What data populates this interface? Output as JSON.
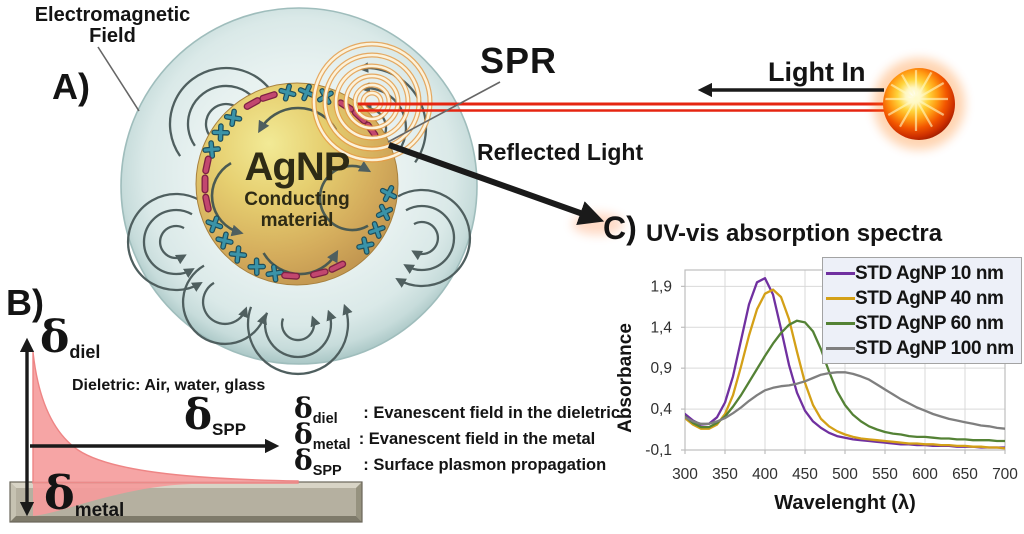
{
  "figure": {
    "panel_a": {
      "label": "A)",
      "em_field_label": "Electromagnetic Field",
      "particle_title": "AgNP",
      "particle_subtitle": "Conducting material",
      "spr_label": "SPR",
      "light_in_label": "Light In",
      "reflected_light_label": "Reflected Light",
      "plus_symbol": "+",
      "minus_symbol": "−"
    },
    "panel_b": {
      "label": "B)",
      "delta_symbol": "δ",
      "diel_subscript": "diel",
      "spp_subscript": "SPP",
      "metal_subscript": "metal",
      "dielectric_note": "Dieletric: Air, water, glass",
      "definitions": [
        {
          "sub": "diel",
          "text": " : Evanescent field in the dieletric"
        },
        {
          "sub": "metal",
          "text": ": Evanescent field in the metal"
        },
        {
          "sub": "SPP",
          "text": " : Surface plasmon propagation"
        }
      ]
    },
    "panel_c": {
      "label": "C)",
      "title": "UV-vis absorption spectra"
    }
  },
  "chart_data": {
    "type": "line",
    "title": "UV-vis absorption spectra",
    "xlabel": "Wavelenght (λ)",
    "ylabel": "Absorbance",
    "xlim": [
      300,
      700
    ],
    "ylim": [
      -0.1,
      2.1
    ],
    "grid": true,
    "legend_position": "top-right",
    "x_ticks": [
      "300",
      "350",
      "400",
      "450",
      "500",
      "550",
      "600",
      "650",
      "700"
    ],
    "x_tick_values": [
      300,
      350,
      400,
      450,
      500,
      550,
      600,
      650,
      700
    ],
    "y_ticks": [
      "1,9",
      "1,4",
      "0,9",
      "0,4",
      "-0,1"
    ],
    "y_tick_values": [
      1.9,
      1.4,
      0.9,
      0.4,
      -0.1
    ],
    "x": [
      300,
      310,
      320,
      330,
      340,
      350,
      360,
      370,
      380,
      390,
      400,
      410,
      420,
      430,
      440,
      450,
      460,
      470,
      480,
      490,
      500,
      510,
      520,
      530,
      540,
      550,
      560,
      570,
      580,
      590,
      600,
      610,
      620,
      630,
      640,
      650,
      660,
      670,
      680,
      690,
      700
    ],
    "series": [
      {
        "name": "STD AgNP 10 nm",
        "color": "#7030A0",
        "values": [
          0.34,
          0.26,
          0.21,
          0.22,
          0.3,
          0.48,
          0.8,
          1.24,
          1.68,
          1.95,
          2.0,
          1.8,
          1.38,
          0.94,
          0.6,
          0.38,
          0.25,
          0.17,
          0.11,
          0.07,
          0.05,
          0.03,
          0.02,
          0.01,
          0.0,
          -0.01,
          -0.02,
          -0.03,
          -0.03,
          -0.04,
          -0.04,
          -0.05,
          -0.05,
          -0.05,
          -0.06,
          -0.06,
          -0.06,
          -0.07,
          -0.07,
          -0.07,
          -0.07
        ]
      },
      {
        "name": "STD AgNP 40 nm",
        "color": "#D4A017",
        "values": [
          0.29,
          0.21,
          0.16,
          0.16,
          0.21,
          0.34,
          0.57,
          0.92,
          1.3,
          1.62,
          1.81,
          1.86,
          1.77,
          1.5,
          1.1,
          0.72,
          0.45,
          0.28,
          0.19,
          0.13,
          0.09,
          0.06,
          0.04,
          0.03,
          0.02,
          0.01,
          0.0,
          -0.01,
          -0.02,
          -0.02,
          -0.03,
          -0.03,
          -0.04,
          -0.04,
          -0.05,
          -0.05,
          -0.06,
          -0.06,
          -0.07,
          -0.07,
          -0.08
        ]
      },
      {
        "name": "STD AgNP 60 nm",
        "color": "#548235",
        "values": [
          0.31,
          0.23,
          0.18,
          0.18,
          0.23,
          0.31,
          0.43,
          0.57,
          0.73,
          0.89,
          1.05,
          1.2,
          1.33,
          1.43,
          1.48,
          1.46,
          1.35,
          1.13,
          0.86,
          0.62,
          0.45,
          0.33,
          0.25,
          0.19,
          0.15,
          0.12,
          0.1,
          0.09,
          0.07,
          0.06,
          0.06,
          0.05,
          0.04,
          0.04,
          0.03,
          0.03,
          0.02,
          0.02,
          0.02,
          0.01,
          0.01
        ]
      },
      {
        "name": "STD AgNP 100 nm",
        "color": "#7F7F7F",
        "values": [
          0.3,
          0.25,
          0.22,
          0.22,
          0.25,
          0.29,
          0.35,
          0.42,
          0.5,
          0.57,
          0.63,
          0.66,
          0.68,
          0.69,
          0.71,
          0.74,
          0.78,
          0.82,
          0.84,
          0.85,
          0.85,
          0.83,
          0.8,
          0.76,
          0.7,
          0.64,
          0.58,
          0.52,
          0.47,
          0.42,
          0.38,
          0.34,
          0.31,
          0.28,
          0.26,
          0.24,
          0.22,
          0.2,
          0.19,
          0.17,
          0.16
        ]
      }
    ]
  }
}
